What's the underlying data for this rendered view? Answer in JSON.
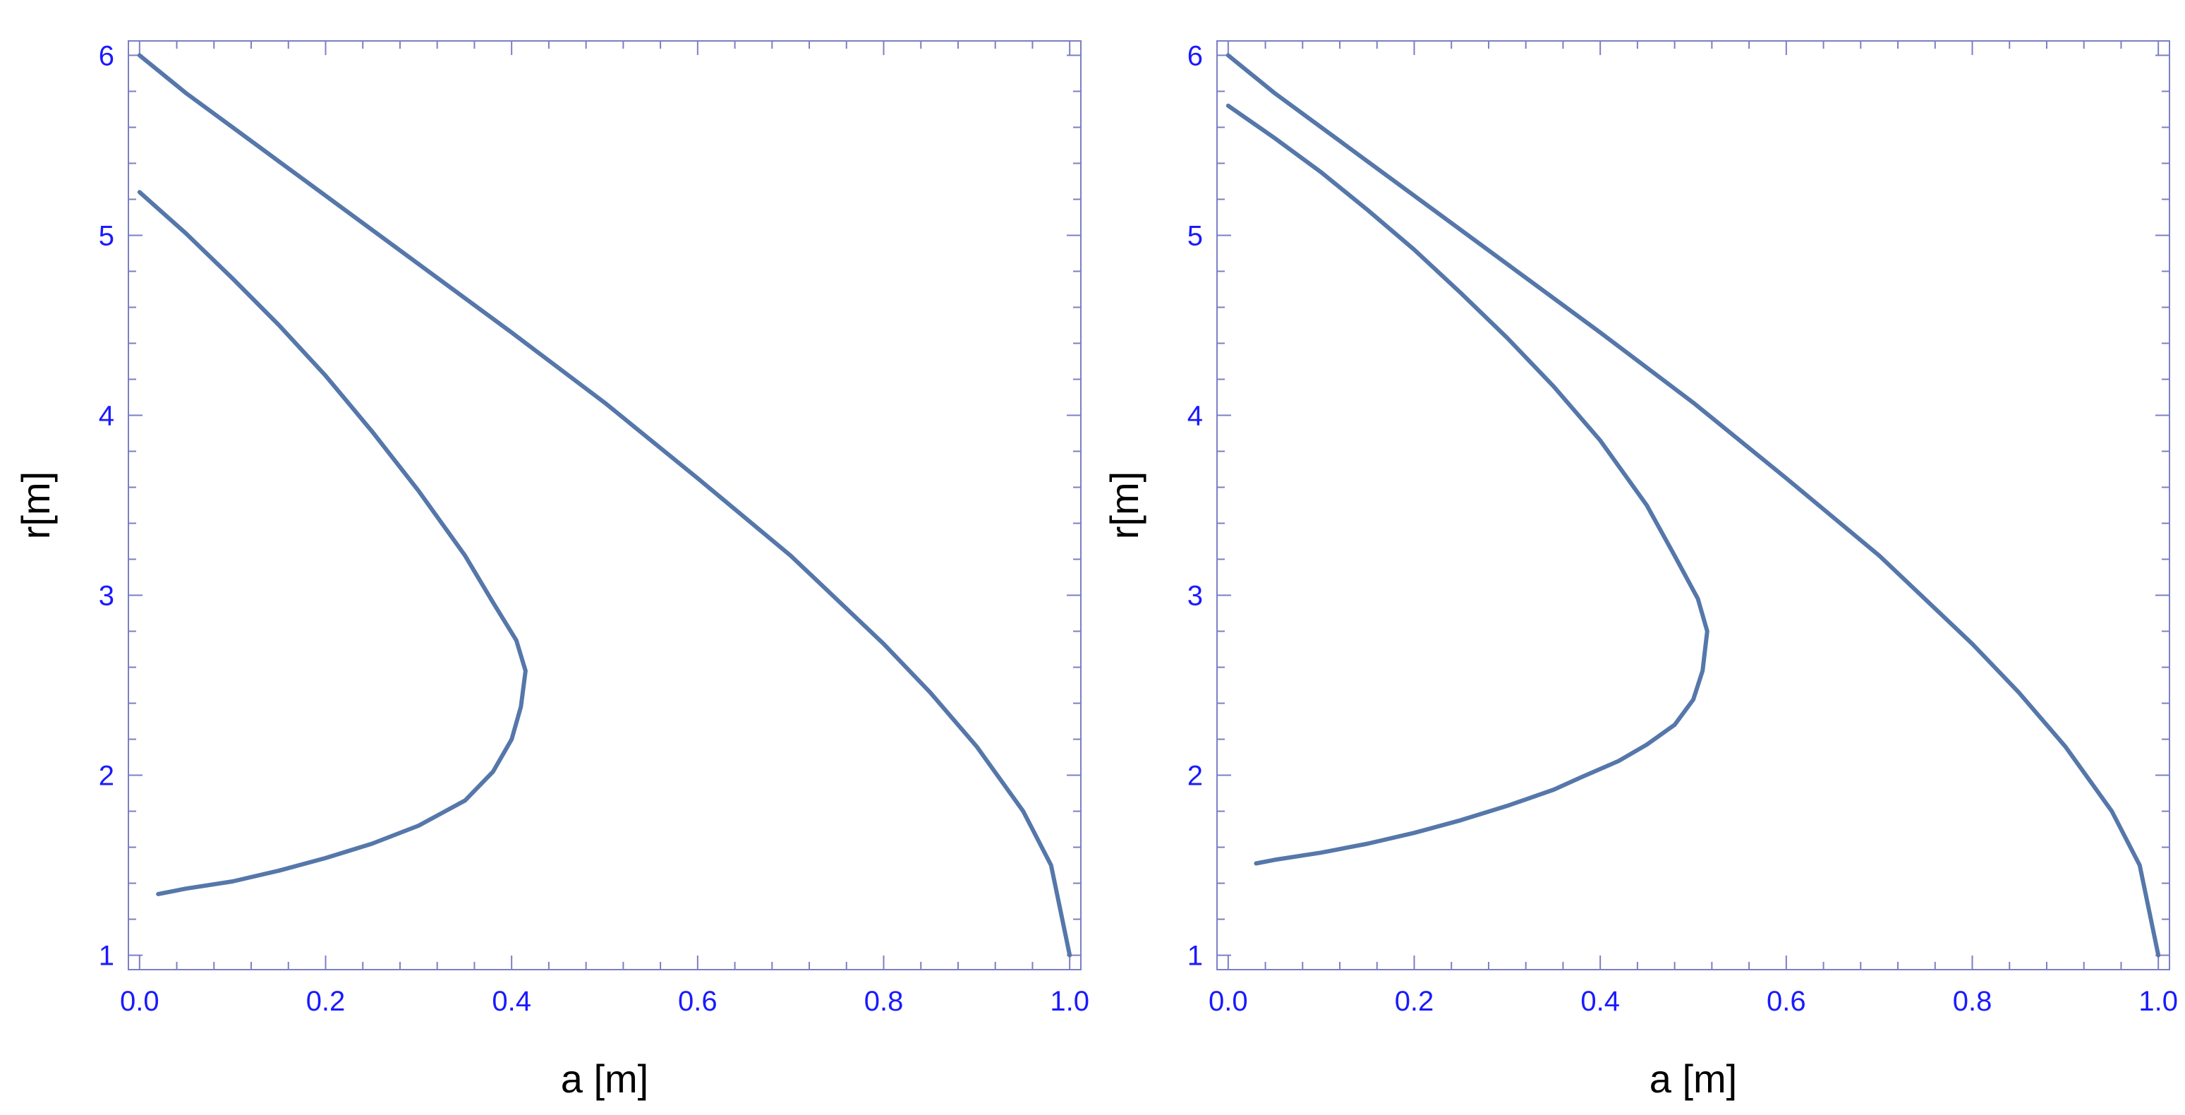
{
  "colors": {
    "frame": "#7a7fc4",
    "tick_label": "#1a1aff",
    "curve": "#5577aa",
    "axis_title": "#000000"
  },
  "chart_data": [
    {
      "type": "line",
      "title": "",
      "xlabel": "a [m]",
      "ylabel": "r[m]",
      "xlim": [
        0.0,
        1.0
      ],
      "ylim": [
        1.0,
        6.0
      ],
      "xticks": [
        "0.0",
        "0.2",
        "0.4",
        "0.6",
        "0.8",
        "1.0"
      ],
      "yticks": [
        "1",
        "2",
        "3",
        "4",
        "5",
        "6"
      ],
      "grid": false,
      "series": [
        {
          "x": [
            0.0,
            0.05,
            0.1,
            0.15,
            0.2,
            0.3,
            0.4,
            0.5,
            0.6,
            0.7,
            0.8,
            0.85,
            0.9,
            0.95,
            0.98,
            1.0
          ],
          "y": [
            6.0,
            5.79,
            5.6,
            5.41,
            5.22,
            4.84,
            4.46,
            4.07,
            3.65,
            3.22,
            2.73,
            2.46,
            2.16,
            1.8,
            1.5,
            1.0
          ]
        },
        {
          "x": [
            0.0,
            0.05,
            0.1,
            0.15,
            0.2,
            0.25,
            0.3,
            0.35,
            0.38,
            0.405,
            0.415,
            0.41,
            0.4,
            0.38,
            0.35,
            0.3,
            0.25,
            0.2,
            0.15,
            0.1,
            0.05,
            0.02
          ],
          "y": [
            5.24,
            5.01,
            4.76,
            4.5,
            4.22,
            3.91,
            3.58,
            3.22,
            2.96,
            2.75,
            2.58,
            2.38,
            2.2,
            2.02,
            1.86,
            1.72,
            1.62,
            1.54,
            1.47,
            1.41,
            1.37,
            1.34
          ]
        }
      ]
    },
    {
      "type": "line",
      "title": "",
      "xlabel": "a [m]",
      "ylabel": "r[m]",
      "xlim": [
        0.0,
        1.0
      ],
      "ylim": [
        1.0,
        6.0
      ],
      "xticks": [
        "0.0",
        "0.2",
        "0.4",
        "0.6",
        "0.8",
        "1.0"
      ],
      "yticks": [
        "1",
        "2",
        "3",
        "4",
        "5",
        "6"
      ],
      "grid": false,
      "series": [
        {
          "x": [
            0.0,
            0.05,
            0.1,
            0.15,
            0.2,
            0.3,
            0.4,
            0.5,
            0.6,
            0.7,
            0.8,
            0.85,
            0.9,
            0.95,
            0.98,
            1.0
          ],
          "y": [
            6.0,
            5.79,
            5.6,
            5.41,
            5.22,
            4.84,
            4.46,
            4.07,
            3.65,
            3.22,
            2.73,
            2.46,
            2.16,
            1.8,
            1.5,
            1.0
          ]
        },
        {
          "x": [
            0.0,
            0.05,
            0.1,
            0.15,
            0.2,
            0.25,
            0.3,
            0.35,
            0.4,
            0.45,
            0.48,
            0.505,
            0.515,
            0.51,
            0.5,
            0.48,
            0.45,
            0.42,
            0.38,
            0.35,
            0.3,
            0.25,
            0.2,
            0.15,
            0.1,
            0.05,
            0.03
          ],
          "y": [
            5.72,
            5.54,
            5.35,
            5.14,
            4.92,
            4.68,
            4.43,
            4.16,
            3.86,
            3.5,
            3.22,
            2.98,
            2.8,
            2.58,
            2.42,
            2.28,
            2.17,
            2.08,
            1.99,
            1.92,
            1.83,
            1.75,
            1.68,
            1.62,
            1.57,
            1.53,
            1.51
          ]
        }
      ]
    }
  ]
}
